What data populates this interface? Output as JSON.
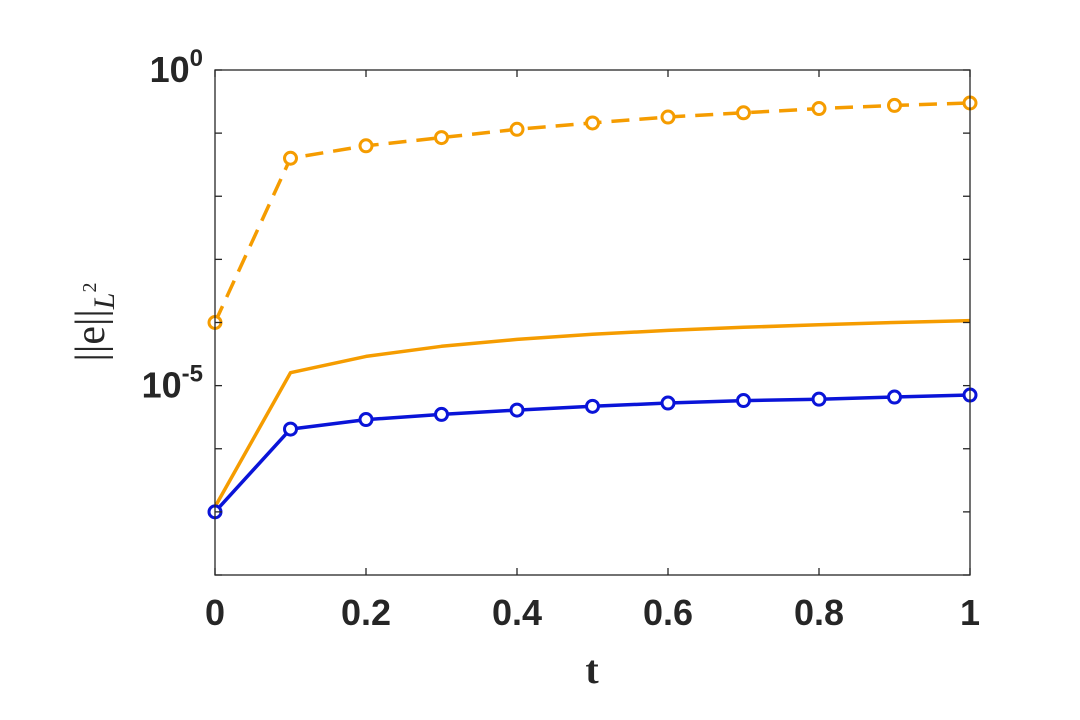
{
  "chart_data": {
    "type": "line",
    "title": "",
    "xlabel": "t",
    "ylabel": "||e||",
    "ylabel_subscript": "L",
    "ylabel_superscript": "2",
    "xlim": [
      0,
      1
    ],
    "ylim": [
      1e-08,
      1
    ],
    "yscale": "log",
    "grid": false,
    "legend": "none",
    "x_ticks": [
      "0",
      "0.2",
      "0.4",
      "0.6",
      "0.8",
      "1"
    ],
    "y_ticks": [
      {
        "base": "10",
        "exp": "0",
        "value": 1
      },
      {
        "base": "10",
        "exp": "-5",
        "value": 1e-05
      }
    ],
    "x": [
      0,
      0.1,
      0.2,
      0.3,
      0.4,
      0.5,
      0.6,
      0.7,
      0.8,
      0.9,
      1.0
    ],
    "series": [
      {
        "color": "#f59c00",
        "style": "dashed",
        "marker": "circle",
        "values": [
          0.0001,
          0.04,
          0.063,
          0.085,
          0.115,
          0.145,
          0.18,
          0.21,
          0.245,
          0.275,
          0.3
        ]
      },
      {
        "color": "#f59c00",
        "style": "solid",
        "marker": "none",
        "values": [
          1.2e-07,
          1.6e-05,
          2.9e-05,
          4.2e-05,
          5.4e-05,
          6.5e-05,
          7.5e-05,
          8.4e-05,
          9.2e-05,
          0.0001,
          0.000107
        ]
      },
      {
        "color": "#0a14d8",
        "style": "solid",
        "marker": "circle",
        "values": [
          1e-07,
          2.05e-06,
          2.9e-06,
          3.5e-06,
          4.1e-06,
          4.7e-06,
          5.3e-06,
          5.8e-06,
          6.1e-06,
          6.6e-06,
          7.1e-06
        ]
      }
    ]
  }
}
